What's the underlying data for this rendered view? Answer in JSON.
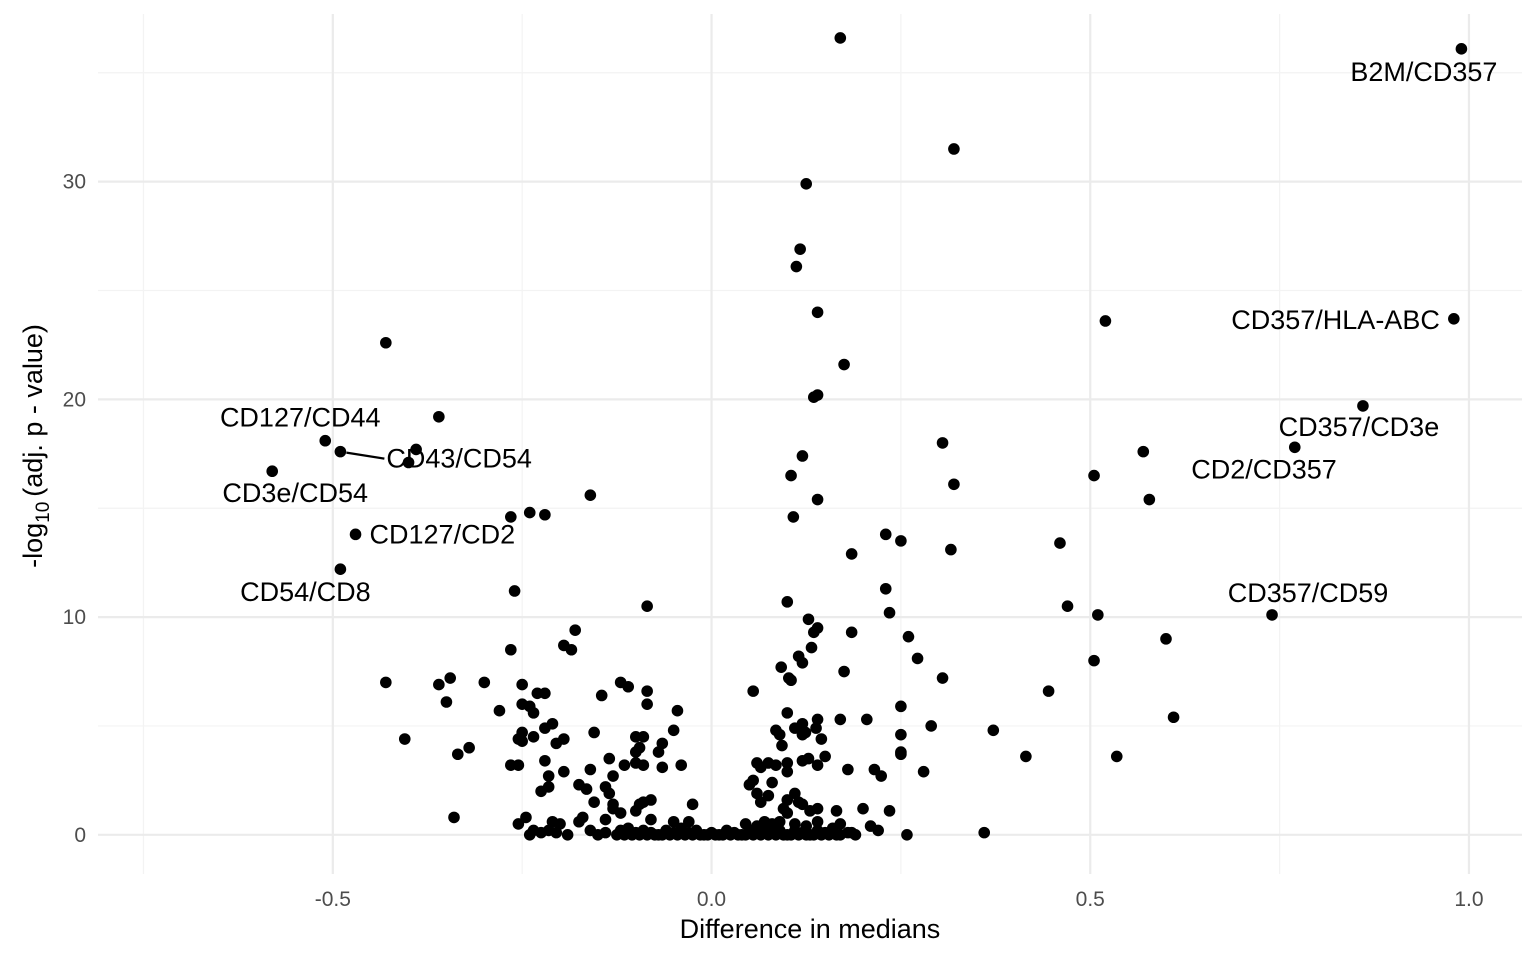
{
  "chart_data": {
    "type": "scatter",
    "title": "",
    "xlabel": "Difference in medians",
    "ylabel": {
      "prefix": "-log",
      "sub": "10",
      "suffix": "(adj. p - value)"
    },
    "xlim": [
      -0.81,
      1.07
    ],
    "ylim": [
      -1.8,
      37.7
    ],
    "x_ticks": [
      -0.5,
      0.0,
      0.5,
      1.0
    ],
    "x_tick_labels": [
      "-0.5",
      "0.0",
      "0.5",
      "1.0"
    ],
    "y_ticks": [
      0,
      10,
      20,
      30
    ],
    "y_tick_labels": [
      "0",
      "10",
      "20",
      "30"
    ],
    "grid": true,
    "legend": "none",
    "colors": {
      "points": "#000000",
      "grid": "#ebebeb",
      "tick_text": "#4d4d4d"
    },
    "labeled_points": [
      {
        "label": "B2M/CD357",
        "x": 0.99,
        "y": 36.1,
        "anchor": "end",
        "dx": 36,
        "dy": 32
      },
      {
        "label": "CD357/HLA-ABC",
        "x": 0.98,
        "y": 23.7,
        "anchor": "end",
        "dx": -14,
        "dy": 10
      },
      {
        "label": "CD357/CD3e",
        "x": 0.86,
        "y": 19.7,
        "anchor": "middle",
        "dx": -4,
        "dy": 30
      },
      {
        "label": "CD2/CD357",
        "x": 0.77,
        "y": 17.8,
        "anchor": "end",
        "dx": 42,
        "dy": 31
      },
      {
        "label": "CD357/CD59",
        "x": 0.74,
        "y": 10.1,
        "anchor": "middle",
        "dx": 36,
        "dy": -13
      },
      {
        "label": "CD127/CD44",
        "x": -0.51,
        "y": 18.1,
        "anchor": "middle",
        "dx": -25,
        "dy": -14
      },
      {
        "label": "CD43/CD54",
        "x": -0.49,
        "y": 17.6,
        "anchor": "start",
        "dx": 46,
        "dy": 16,
        "leader": true
      },
      {
        "label": "CD3e/CD54",
        "x": -0.58,
        "y": 16.7,
        "anchor": "middle",
        "dx": 23,
        "dy": 31
      },
      {
        "label": "CD127/CD2",
        "x": -0.47,
        "y": 13.8,
        "anchor": "start",
        "dx": 14,
        "dy": 9
      },
      {
        "label": "CD54/CD8",
        "x": -0.49,
        "y": 12.2,
        "anchor": "middle",
        "dx": -35,
        "dy": 32
      }
    ],
    "points": [
      [
        -0.58,
        16.7
      ],
      [
        -0.51,
        18.1
      ],
      [
        -0.49,
        17.6
      ],
      [
        -0.47,
        13.8
      ],
      [
        -0.49,
        12.2
      ],
      [
        0.99,
        36.1
      ],
      [
        0.98,
        23.7
      ],
      [
        0.86,
        19.7
      ],
      [
        0.77,
        17.8
      ],
      [
        0.74,
        10.1
      ],
      [
        0.17,
        36.6
      ],
      [
        0.32,
        31.5
      ],
      [
        0.125,
        29.9
      ],
      [
        0.117,
        26.9
      ],
      [
        0.112,
        26.1
      ],
      [
        0.14,
        24.0
      ],
      [
        0.52,
        23.6
      ],
      [
        -0.43,
        22.6
      ],
      [
        0.175,
        21.6
      ],
      [
        -0.36,
        19.2
      ],
      [
        0.14,
        20.2
      ],
      [
        0.135,
        20.1
      ],
      [
        -0.39,
        17.7
      ],
      [
        -0.4,
        17.1
      ],
      [
        0.305,
        18.0
      ],
      [
        0.12,
        17.4
      ],
      [
        0.57,
        17.6
      ],
      [
        0.505,
        16.5
      ],
      [
        0.105,
        16.5
      ],
      [
        0.32,
        16.1
      ],
      [
        0.578,
        15.4
      ],
      [
        -0.16,
        15.6
      ],
      [
        0.14,
        15.4
      ],
      [
        -0.24,
        14.8
      ],
      [
        -0.22,
        14.7
      ],
      [
        -0.265,
        14.6
      ],
      [
        0.108,
        14.6
      ],
      [
        0.46,
        13.4
      ],
      [
        0.23,
        13.8
      ],
      [
        0.25,
        13.5
      ],
      [
        0.185,
        12.9
      ],
      [
        0.316,
        13.1
      ],
      [
        -0.26,
        11.2
      ],
      [
        0.23,
        11.3
      ],
      [
        0.47,
        10.5
      ],
      [
        -0.085,
        10.5
      ],
      [
        0.1,
        10.7
      ],
      [
        0.51,
        10.1
      ],
      [
        0.235,
        10.2
      ],
      [
        0.128,
        9.9
      ],
      [
        0.14,
        9.5
      ],
      [
        0.135,
        9.3
      ],
      [
        0.185,
        9.3
      ],
      [
        0.6,
        9.0
      ],
      [
        0.26,
        9.1
      ],
      [
        0.132,
        8.6
      ],
      [
        -0.18,
        9.4
      ],
      [
        -0.195,
        8.7
      ],
      [
        -0.185,
        8.5
      ],
      [
        -0.265,
        8.5
      ],
      [
        0.115,
        8.2
      ],
      [
        0.12,
        7.9
      ],
      [
        0.272,
        8.1
      ],
      [
        0.505,
        8.0
      ],
      [
        0.092,
        7.7
      ],
      [
        0.175,
        7.5
      ],
      [
        0.102,
        7.2
      ],
      [
        0.105,
        7.1
      ],
      [
        0.305,
        7.2
      ],
      [
        -0.43,
        7.0
      ],
      [
        -0.345,
        7.2
      ],
      [
        -0.36,
        6.9
      ],
      [
        -0.3,
        7.0
      ],
      [
        -0.25,
        6.9
      ],
      [
        -0.12,
        7.0
      ],
      [
        -0.11,
        6.8
      ],
      [
        -0.23,
        6.5
      ],
      [
        -0.22,
        6.5
      ],
      [
        -0.145,
        6.4
      ],
      [
        -0.085,
        6.6
      ],
      [
        0.055,
        6.6
      ],
      [
        0.445,
        6.6
      ],
      [
        -0.35,
        6.1
      ],
      [
        -0.25,
        6.0
      ],
      [
        -0.24,
        5.9
      ],
      [
        -0.085,
        6.0
      ],
      [
        -0.045,
        5.7
      ],
      [
        -0.28,
        5.7
      ],
      [
        -0.235,
        5.6
      ],
      [
        0.1,
        5.6
      ],
      [
        0.25,
        5.9
      ],
      [
        0.61,
        5.4
      ],
      [
        0.14,
        5.3
      ],
      [
        0.17,
        5.3
      ],
      [
        0.205,
        5.3
      ],
      [
        -0.21,
        5.1
      ],
      [
        0.12,
        5.1
      ],
      [
        0.12,
        4.6
      ],
      [
        0.11,
        4.9
      ],
      [
        0.138,
        4.9
      ],
      [
        -0.25,
        4.7
      ],
      [
        -0.25,
        4.3
      ],
      [
        -0.22,
        4.9
      ],
      [
        -0.235,
        4.5
      ],
      [
        -0.255,
        4.4
      ],
      [
        -0.405,
        4.4
      ],
      [
        -0.155,
        4.7
      ],
      [
        -0.1,
        4.5
      ],
      [
        -0.09,
        4.5
      ],
      [
        -0.05,
        4.8
      ],
      [
        0.085,
        4.8
      ],
      [
        0.09,
        4.6
      ],
      [
        0.145,
        4.4
      ],
      [
        0.25,
        4.6
      ],
      [
        0.29,
        5.0
      ],
      [
        0.372,
        4.8
      ],
      [
        -0.065,
        4.2
      ],
      [
        0.093,
        4.1
      ],
      [
        0.124,
        4.7
      ],
      [
        -0.07,
        3.8
      ],
      [
        -0.095,
        4.0
      ],
      [
        -0.1,
        3.8
      ],
      [
        -0.135,
        3.5
      ],
      [
        -0.195,
        4.4
      ],
      [
        -0.205,
        4.2
      ],
      [
        -0.32,
        4.0
      ],
      [
        -0.335,
        3.7
      ],
      [
        0.15,
        3.6
      ],
      [
        0.25,
        3.7
      ],
      [
        0.25,
        3.8
      ],
      [
        0.415,
        3.6
      ],
      [
        0.535,
        3.6
      ],
      [
        0.12,
        3.4
      ],
      [
        0.128,
        3.5
      ],
      [
        -0.1,
        3.3
      ],
      [
        -0.09,
        3.2
      ],
      [
        -0.115,
        3.2
      ],
      [
        -0.065,
        3.1
      ],
      [
        -0.04,
        3.2
      ],
      [
        -0.255,
        3.2
      ],
      [
        -0.265,
        3.2
      ],
      [
        -0.22,
        3.4
      ],
      [
        0.06,
        3.3
      ],
      [
        0.075,
        3.3
      ],
      [
        0.085,
        3.2
      ],
      [
        0.1,
        3.3
      ],
      [
        0.14,
        3.2
      ],
      [
        0.065,
        3.1
      ],
      [
        0.1,
        2.9
      ],
      [
        0.18,
        3.0
      ],
      [
        0.215,
        3.0
      ],
      [
        0.224,
        2.7
      ],
      [
        0.28,
        2.9
      ],
      [
        -0.215,
        2.7
      ],
      [
        -0.195,
        2.9
      ],
      [
        -0.16,
        3.0
      ],
      [
        -0.13,
        2.7
      ],
      [
        0.055,
        2.5
      ],
      [
        0.05,
        2.3
      ],
      [
        0.08,
        2.4
      ],
      [
        -0.215,
        2.2
      ],
      [
        -0.175,
        2.3
      ],
      [
        -0.165,
        2.1
      ],
      [
        -0.14,
        2.2
      ],
      [
        -0.225,
        2.0
      ],
      [
        -0.135,
        1.9
      ],
      [
        -0.155,
        1.5
      ],
      [
        -0.13,
        1.4
      ],
      [
        -0.08,
        1.6
      ],
      [
        -0.09,
        1.5
      ],
      [
        -0.095,
        1.4
      ],
      [
        -0.025,
        1.4
      ],
      [
        -0.13,
        1.2
      ],
      [
        -0.1,
        1.1
      ],
      [
        -0.12,
        1.0
      ],
      [
        0.06,
        1.9
      ],
      [
        0.065,
        1.5
      ],
      [
        0.075,
        1.8
      ],
      [
        0.1,
        1.6
      ],
      [
        0.11,
        1.9
      ],
      [
        0.115,
        1.5
      ],
      [
        0.12,
        1.4
      ],
      [
        0.095,
        1.2
      ],
      [
        0.1,
        1.0
      ],
      [
        0.13,
        1.1
      ],
      [
        0.14,
        1.2
      ],
      [
        0.165,
        1.1
      ],
      [
        0.2,
        1.2
      ],
      [
        0.235,
        1.1
      ],
      [
        -0.245,
        0.8
      ],
      [
        -0.34,
        0.8
      ],
      [
        -0.21,
        0.6
      ],
      [
        -0.2,
        0.5
      ],
      [
        -0.175,
        0.6
      ],
      [
        -0.17,
        0.8
      ],
      [
        -0.14,
        0.7
      ],
      [
        -0.08,
        0.7
      ],
      [
        -0.05,
        0.6
      ],
      [
        -0.03,
        0.6
      ],
      [
        0.045,
        0.5
      ],
      [
        0.06,
        0.4
      ],
      [
        0.07,
        0.6
      ],
      [
        0.08,
        0.5
      ],
      [
        0.09,
        0.6
      ],
      [
        0.11,
        0.5
      ],
      [
        0.125,
        0.4
      ],
      [
        0.14,
        0.6
      ],
      [
        0.17,
        0.5
      ],
      [
        0.21,
        0.4
      ],
      [
        -0.255,
        0.5
      ],
      [
        0.36,
        0.1
      ],
      [
        0.258,
        0.0
      ],
      [
        0.22,
        0.2
      ],
      [
        0.185,
        0.1
      ],
      [
        -0.235,
        0.2
      ],
      [
        -0.24,
        0.0
      ],
      [
        -0.225,
        0.1
      ],
      [
        -0.19,
        0.0
      ],
      [
        -0.205,
        0.1
      ],
      [
        -0.215,
        0.2
      ],
      [
        -0.16,
        0.2
      ],
      [
        -0.15,
        0.0
      ],
      [
        -0.14,
        0.1
      ],
      [
        -0.12,
        0.2
      ],
      [
        -0.11,
        0.3
      ],
      [
        -0.1,
        0.1
      ],
      [
        -0.09,
        0.2
      ],
      [
        -0.08,
        0.1
      ],
      [
        -0.07,
        0.0
      ],
      [
        -0.06,
        0.2
      ],
      [
        -0.05,
        0.1
      ],
      [
        -0.04,
        0.3
      ],
      [
        -0.03,
        0.1
      ],
      [
        -0.02,
        0.2
      ],
      [
        -0.01,
        0.0
      ],
      [
        0.0,
        0.1
      ],
      [
        0.01,
        0.0
      ],
      [
        0.02,
        0.2
      ],
      [
        0.03,
        0.1
      ],
      [
        0.04,
        0.0
      ],
      [
        0.05,
        0.2
      ],
      [
        0.06,
        0.1
      ],
      [
        0.07,
        0.3
      ],
      [
        0.08,
        0.1
      ],
      [
        0.09,
        0.2
      ],
      [
        0.1,
        0.0
      ],
      [
        0.11,
        0.2
      ],
      [
        0.12,
        0.1
      ],
      [
        0.13,
        0.0
      ],
      [
        0.14,
        0.2
      ],
      [
        0.15,
        0.1
      ],
      [
        0.16,
        0.3
      ],
      [
        0.17,
        0.0
      ],
      [
        0.18,
        0.1
      ],
      [
        0.19,
        0.0
      ],
      [
        -0.125,
        0.0
      ],
      [
        -0.115,
        0.0
      ],
      [
        -0.105,
        0.0
      ],
      [
        -0.095,
        0.0
      ],
      [
        -0.085,
        0.0
      ],
      [
        -0.075,
        0.0
      ],
      [
        -0.065,
        0.0
      ],
      [
        -0.055,
        0.0
      ],
      [
        -0.045,
        0.0
      ],
      [
        -0.035,
        0.0
      ],
      [
        -0.025,
        0.0
      ],
      [
        -0.015,
        0.0
      ],
      [
        -0.005,
        0.0
      ],
      [
        0.005,
        0.0
      ],
      [
        0.015,
        0.0
      ],
      [
        0.025,
        0.0
      ],
      [
        0.035,
        0.0
      ],
      [
        0.045,
        0.0
      ],
      [
        0.055,
        0.0
      ],
      [
        0.065,
        0.0
      ],
      [
        0.075,
        0.0
      ],
      [
        0.085,
        0.0
      ],
      [
        0.095,
        0.0
      ],
      [
        0.105,
        0.0
      ],
      [
        0.115,
        0.0
      ],
      [
        0.125,
        0.0
      ],
      [
        0.135,
        0.0
      ],
      [
        0.145,
        0.0
      ],
      [
        0.155,
        0.0
      ],
      [
        0.165,
        0.0
      ]
    ]
  }
}
